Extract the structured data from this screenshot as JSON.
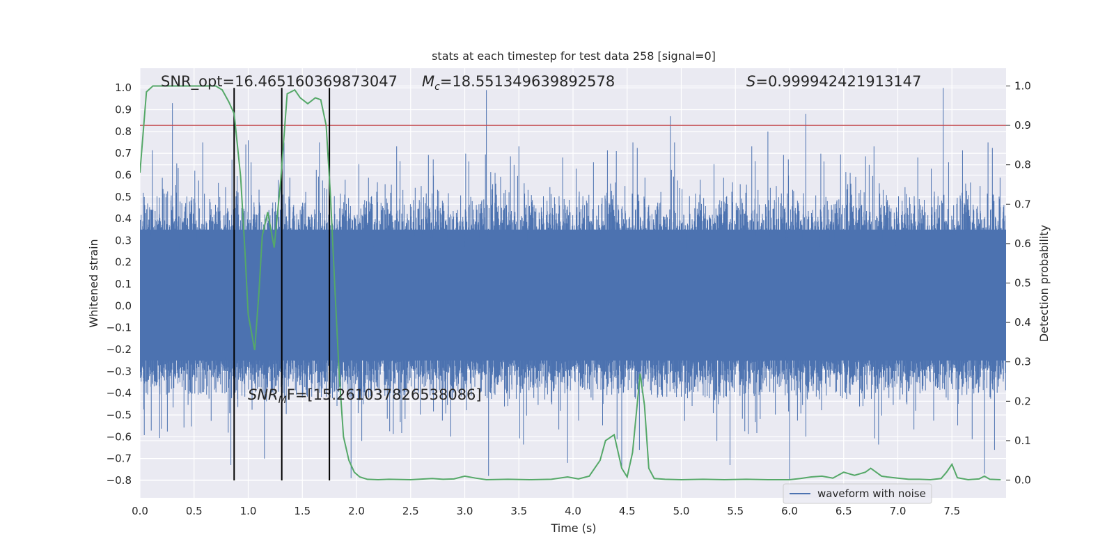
{
  "chart_data": {
    "type": "line",
    "title": "stats at each timestep for test data 258 [signal=0]",
    "xlabel": "Time (s)",
    "ylabel": "Whitened strain",
    "y2label": "Detection probability",
    "xlim": [
      0.0,
      8.0
    ],
    "ylim": [
      -0.88,
      1.09
    ],
    "y2lim": [
      -0.045,
      1.045
    ],
    "xticks": [
      "0.0",
      "0.5",
      "1.0",
      "1.5",
      "2.0",
      "2.5",
      "3.0",
      "3.5",
      "4.0",
      "4.5",
      "5.0",
      "5.5",
      "6.0",
      "6.5",
      "7.0",
      "7.5"
    ],
    "yticks": [
      "1.0",
      "0.9",
      "0.8",
      "0.7",
      "0.6",
      "0.5",
      "0.4",
      "0.3",
      "0.2",
      "0.1",
      "0.0",
      "−0.1",
      "−0.2",
      "−0.3",
      "−0.4",
      "−0.5",
      "−0.6",
      "−0.7",
      "−0.8"
    ],
    "y2ticks": [
      "1.0",
      "0.9",
      "0.8",
      "0.7",
      "0.6",
      "0.5",
      "0.4",
      "0.3",
      "0.2",
      "0.1",
      "0.0"
    ],
    "grid": true,
    "legend": {
      "position": "lower-right",
      "entries": [
        "waveform with noise"
      ]
    },
    "annotations": {
      "snr_opt": "SNR_opt=16.465160369873047",
      "mc_sym": "M",
      "mc_sub": "c",
      "mc_val": "=18.551349639892578",
      "s_sym": "S",
      "s_val": "=0.999942421913147",
      "snr_mf_sym": "SNR",
      "snr_mf_sub": "M",
      "snr_mf_val": "F=[15.261037826538086]"
    },
    "threshold": {
      "y2": 0.9,
      "color": "#c44e52"
    },
    "vlines": [
      0.87,
      1.31,
      1.75
    ],
    "vline_range": [
      -0.8,
      1.0
    ],
    "waveform": {
      "name": "waveform with noise",
      "color": "#4c72b0",
      "x_range": [
        0.0,
        8.0
      ],
      "core_band": [
        -0.29,
        0.41
      ],
      "spikes": [
        {
          "x": 0.3,
          "y": 0.93
        },
        {
          "x": 0.85,
          "y": 0.67
        },
        {
          "x": 1.0,
          "y": 0.76
        },
        {
          "x": 3.2,
          "y": 0.99
        },
        {
          "x": 4.9,
          "y": 0.87
        },
        {
          "x": 6.15,
          "y": 0.88
        },
        {
          "x": 7.42,
          "y": 1.0
        },
        {
          "x": 5.8,
          "y": 0.8
        },
        {
          "x": 4.4,
          "y": 0.71
        },
        {
          "x": 0.84,
          "y": -0.73
        },
        {
          "x": 1.95,
          "y": -0.79
        },
        {
          "x": 3.22,
          "y": -0.78
        },
        {
          "x": 6.0,
          "y": -0.8
        },
        {
          "x": 7.8,
          "y": -0.77
        },
        {
          "x": 4.45,
          "y": -0.74
        },
        {
          "x": 5.45,
          "y": -0.73
        },
        {
          "x": 1.15,
          "y": -0.7
        },
        {
          "x": 3.95,
          "y": -0.72
        }
      ]
    },
    "probability": {
      "name": "detection probability",
      "color": "#55a868",
      "x": [
        0.0,
        0.06,
        0.12,
        0.2,
        0.3,
        0.4,
        0.5,
        0.6,
        0.7,
        0.76,
        0.82,
        0.87,
        0.93,
        0.97,
        1.0,
        1.06,
        1.1,
        1.13,
        1.18,
        1.24,
        1.3,
        1.36,
        1.43,
        1.48,
        1.55,
        1.62,
        1.67,
        1.72,
        1.76,
        1.8,
        1.84,
        1.88,
        1.93,
        1.98,
        2.03,
        2.1,
        2.2,
        2.3,
        2.5,
        2.7,
        2.8,
        2.9,
        3.0,
        3.1,
        3.2,
        3.4,
        3.6,
        3.8,
        3.95,
        4.05,
        4.15,
        4.25,
        4.3,
        4.38,
        4.45,
        4.5,
        4.55,
        4.62,
        4.66,
        4.7,
        4.75,
        4.85,
        5.0,
        5.2,
        5.4,
        5.6,
        5.8,
        6.0,
        6.1,
        6.2,
        6.3,
        6.4,
        6.5,
        6.6,
        6.7,
        6.75,
        6.8,
        6.85,
        6.9,
        7.0,
        7.1,
        7.2,
        7.3,
        7.4,
        7.45,
        7.5,
        7.55,
        7.65,
        7.75,
        7.8,
        7.85,
        7.95
      ],
      "y": [
        0.78,
        0.985,
        1.0,
        1.0,
        1.0,
        1.0,
        1.0,
        1.0,
        1.0,
        0.99,
        0.96,
        0.93,
        0.77,
        0.58,
        0.42,
        0.33,
        0.48,
        0.62,
        0.68,
        0.59,
        0.76,
        0.98,
        0.99,
        0.97,
        0.955,
        0.97,
        0.965,
        0.9,
        0.72,
        0.49,
        0.27,
        0.11,
        0.05,
        0.02,
        0.008,
        0.002,
        0.001,
        0.002,
        0.001,
        0.004,
        0.002,
        0.003,
        0.01,
        0.005,
        0.001,
        0.002,
        0.001,
        0.002,
        0.008,
        0.003,
        0.01,
        0.05,
        0.1,
        0.115,
        0.03,
        0.008,
        0.07,
        0.27,
        0.19,
        0.03,
        0.004,
        0.002,
        0.001,
        0.002,
        0.001,
        0.002,
        0.001,
        0.001,
        0.004,
        0.008,
        0.01,
        0.005,
        0.02,
        0.012,
        0.02,
        0.03,
        0.02,
        0.01,
        0.008,
        0.005,
        0.002,
        0.002,
        0.001,
        0.004,
        0.02,
        0.04,
        0.006,
        0.001,
        0.003,
        0.01,
        0.002,
        0.001
      ]
    }
  }
}
